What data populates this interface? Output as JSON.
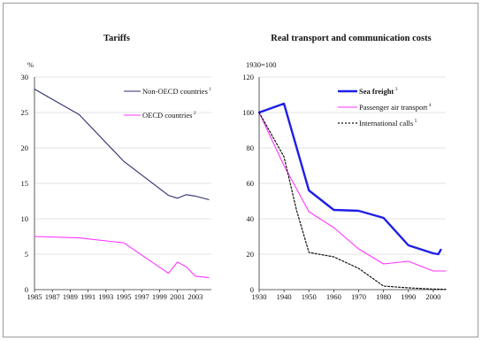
{
  "chart_data": [
    {
      "type": "line",
      "title": "Tariffs",
      "ylabel": "%",
      "ylim": [
        0,
        30
      ],
      "yticks": [
        "0",
        "5",
        "10",
        "15",
        "20",
        "25",
        "30"
      ],
      "xlim": [
        1985,
        2004.8
      ],
      "xticks": [
        "1985",
        "1987",
        "1989",
        "1991",
        "1993",
        "1995",
        "1997",
        "1999",
        "2001",
        "2003"
      ],
      "legend_position": "top-right",
      "grid": "horizontal",
      "series": [
        {
          "name": "Non-OECD countries",
          "note": "1",
          "color": "#2e2e6e",
          "x": [
            1985,
            1990,
            1995,
            2000,
            2001,
            2002,
            2003,
            2004.5
          ],
          "y": [
            28.3,
            24.7,
            18.1,
            13.3,
            12.9,
            13.4,
            13.2,
            12.7
          ]
        },
        {
          "name": "OECD countries",
          "note": "2",
          "color": "#ff33ff",
          "x": [
            1985,
            1990,
            1995,
            2000,
            2001,
            2002,
            2003,
            2004.5
          ],
          "y": [
            7.5,
            7.3,
            6.6,
            2.3,
            3.9,
            3.2,
            1.9,
            1.7
          ]
        }
      ]
    },
    {
      "type": "line",
      "title": "Real transport and communication costs",
      "ylabel": "1930=100",
      "ylim": [
        0,
        120
      ],
      "yticks": [
        "0",
        "20",
        "40",
        "60",
        "80",
        "100",
        "120"
      ],
      "xlim": [
        1930,
        2005
      ],
      "xticks": [
        "1930",
        "1940",
        "1950",
        "1960",
        "1970",
        "1980",
        "1990",
        "2000"
      ],
      "legend_position": "top-right",
      "grid": "horizontal",
      "series": [
        {
          "name": "Sea freight",
          "note": "3",
          "color": "#1f1fe6",
          "x": [
            1930,
            1940,
            1950,
            1960,
            1970,
            1980,
            1990,
            2000,
            2002,
            2003
          ],
          "y": [
            100,
            105,
            56,
            45,
            44.5,
            40.5,
            25,
            20.5,
            20,
            22.5
          ]
        },
        {
          "name": "Passenger air transport",
          "note": "4",
          "color": "#ff33ff",
          "x": [
            1930,
            1940,
            1950,
            1960,
            1970,
            1980,
            1990,
            2000,
            2005
          ],
          "y": [
            100,
            70,
            44,
            35,
            23,
            14.5,
            16,
            10.5,
            10.5
          ]
        },
        {
          "name": "International calls",
          "note": "5",
          "color": "#111111",
          "x": [
            1930,
            1940,
            1945,
            1950,
            1960,
            1970,
            1980,
            1990,
            2000,
            2005
          ],
          "y": [
            100,
            75,
            45,
            21,
            18.5,
            12,
            2,
            1,
            0.3,
            0.2
          ]
        }
      ]
    }
  ]
}
